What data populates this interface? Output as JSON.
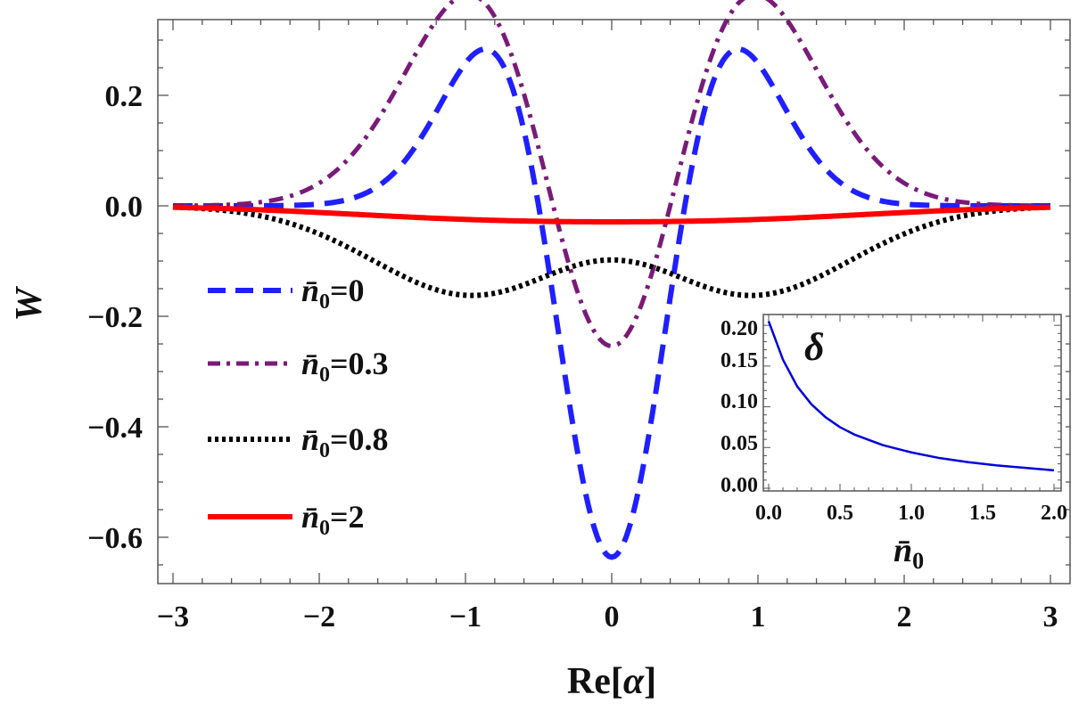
{
  "chart_data": [
    {
      "type": "line",
      "title": "",
      "xlabel_main": "Re[",
      "xlabel_symbol": "α",
      "xlabel_close": "]",
      "ylabel": "W",
      "xlim": [
        -3,
        3
      ],
      "ylim": [
        -0.68,
        0.33
      ],
      "x_ticks": [
        -3,
        -2,
        -1,
        0,
        1,
        2,
        3
      ],
      "x_tick_labels": [
        "−3",
        "−2",
        "−1",
        "0",
        "1",
        "2",
        "3"
      ],
      "y_ticks": [
        0.2,
        0.0,
        -0.2,
        -0.4,
        -0.6
      ],
      "y_tick_labels": [
        "0.2",
        "0.0",
        "−0.2",
        "−0.4",
        "−0.6"
      ],
      "legend_position": "left-center",
      "legend_symbol": "n̄",
      "legend_subscript": "0",
      "series": [
        {
          "name": "n̄0=0",
          "label_value": "=0",
          "nbar": 0,
          "color": "#1f1fff",
          "style": "dashed"
        },
        {
          "name": "n̄0=0.3",
          "label_value": "=0.3",
          "nbar": 0.3,
          "color": "#7a1a7a",
          "style": "dashdot"
        },
        {
          "name": "n̄0=0.8",
          "label_value": "=0.8",
          "nbar": 0.8,
          "color": "#000000",
          "style": "dotted"
        },
        {
          "name": "n̄0=2",
          "label_value": "=2",
          "nbar": 2,
          "color": "#ff0000",
          "style": "solid"
        }
      ],
      "min_values_at_zero": [
        -0.636,
        -0.254,
        -0.098,
        -0.029
      ]
    },
    {
      "type": "line",
      "title": "δ",
      "xlabel_symbol": "n̄",
      "xlabel_subscript": "0",
      "ylabel": "",
      "xlim": [
        0,
        2
      ],
      "ylim": [
        0,
        0.21
      ],
      "x_ticks": [
        0.0,
        0.5,
        1.0,
        1.5,
        2.0
      ],
      "x_tick_labels": [
        "0.0",
        "0.5",
        "1.0",
        "1.5",
        "2.0"
      ],
      "y_ticks": [
        0.0,
        0.05,
        0.1,
        0.15,
        0.2
      ],
      "y_tick_labels": [
        "0.00",
        "0.05",
        "0.10",
        "0.15",
        "0.20"
      ],
      "series": [
        {
          "name": "delta",
          "color": "#0000dd",
          "x": [
            0,
            0.1,
            0.2,
            0.3,
            0.4,
            0.5,
            0.6,
            0.8,
            1.0,
            1.2,
            1.4,
            1.6,
            1.8,
            2.0
          ],
          "values": [
            0.205,
            0.158,
            0.125,
            0.103,
            0.087,
            0.075,
            0.066,
            0.053,
            0.044,
            0.037,
            0.032,
            0.028,
            0.025,
            0.022
          ]
        }
      ]
    }
  ]
}
